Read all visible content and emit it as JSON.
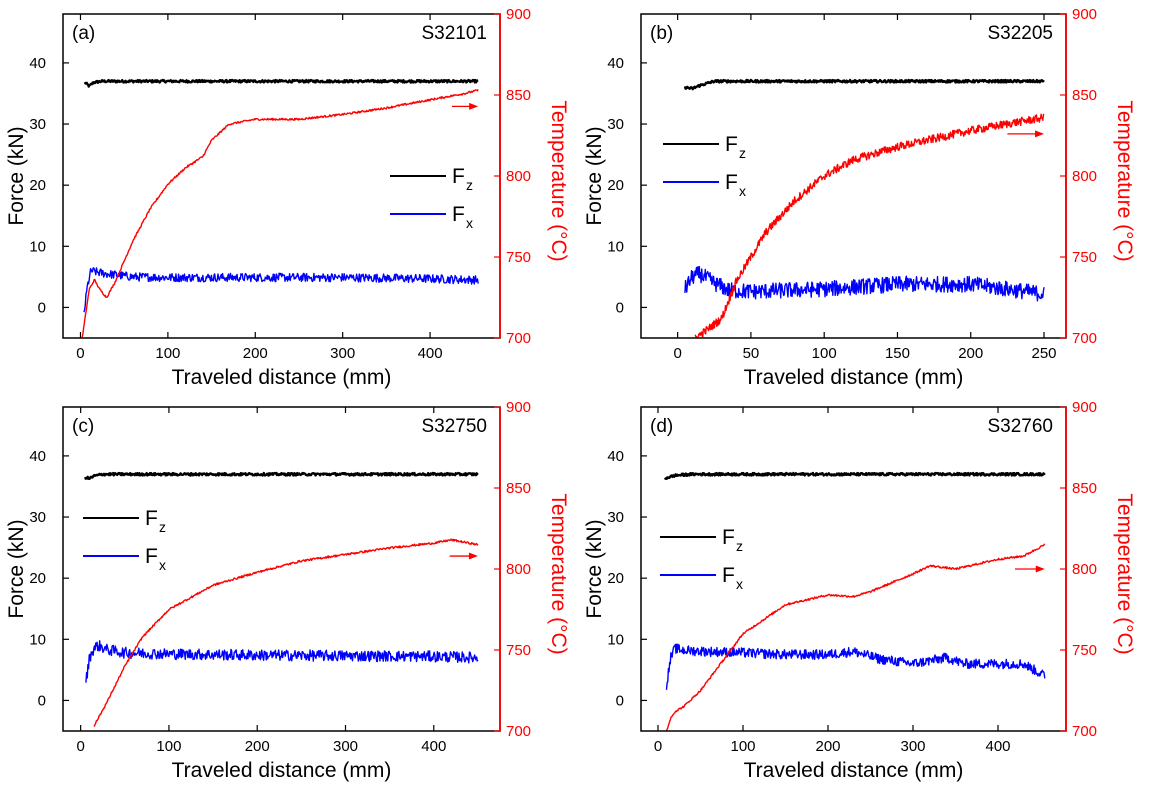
{
  "figure": {
    "left_axis_label": "Force (kN)",
    "right_axis_label": "Temperature (°C)",
    "x_axis_label": "Traveled distance (mm)",
    "legend": [
      {
        "main": "F",
        "sub": "z",
        "color": "#000000"
      },
      {
        "main": "F",
        "sub": "x",
        "color": "#0000ff"
      }
    ],
    "colors": {
      "Fz": "#000000",
      "Fx": "#0000ff",
      "temperature": "#ff0000"
    }
  },
  "chart_data": [
    {
      "type": "line",
      "panel_label": "(a)",
      "sample": "S32101",
      "xlabel": "Traveled distance (mm)",
      "ylabel": "Force (kN)",
      "y2label": "Temperature (°C)",
      "xlim": [
        -20,
        480
      ],
      "xticks": [
        0,
        100,
        200,
        300,
        400
      ],
      "ylim": [
        -5,
        48
      ],
      "yticks": [
        0,
        10,
        20,
        30,
        40
      ],
      "y2lim": [
        700,
        900
      ],
      "y2ticks": [
        700,
        750,
        800,
        850,
        900
      ],
      "grid": false,
      "legend_position": "right",
      "series": [
        {
          "name": "Fz",
          "axis": "left",
          "noise": 0.2,
          "x": [
            5,
            10,
            15,
            25,
            50,
            100,
            200,
            300,
            400,
            455
          ],
          "y": [
            36.8,
            36.2,
            36.8,
            37.0,
            37.0,
            37.0,
            37.0,
            37.0,
            37.0,
            37.0
          ]
        },
        {
          "name": "Fx",
          "axis": "left",
          "noise": 0.7,
          "x": [
            4,
            8,
            12,
            18,
            30,
            60,
            100,
            200,
            300,
            400,
            455
          ],
          "y": [
            -1.0,
            3.5,
            6.0,
            5.8,
            5.5,
            5.0,
            4.9,
            4.9,
            4.9,
            4.7,
            4.5
          ],
          "x_start": 3
        },
        {
          "name": "Temperature",
          "axis": "right",
          "noise": 0.6,
          "x": [
            2,
            10,
            16,
            22,
            30,
            40,
            60,
            80,
            100,
            120,
            140,
            150,
            170,
            200,
            250,
            300,
            350,
            400,
            440,
            455
          ],
          "y": [
            700,
            730,
            736,
            730,
            725,
            735,
            760,
            780,
            795,
            805,
            812,
            822,
            832,
            835,
            835,
            838,
            842,
            847,
            851,
            853
          ]
        }
      ],
      "arrow_right": {
        "x": [
          425,
          455
        ],
        "temperature": 843
      }
    },
    {
      "type": "line",
      "panel_label": "(b)",
      "sample": "S32205",
      "xlabel": "Traveled distance (mm)",
      "ylabel": "Force (kN)",
      "y2label": "Temperature (°C)",
      "xlim": [
        -25,
        265
      ],
      "xticks": [
        0,
        50,
        100,
        150,
        200,
        250
      ],
      "ylim": [
        -5,
        48
      ],
      "yticks": [
        0,
        10,
        20,
        30,
        40
      ],
      "y2lim": [
        700,
        900
      ],
      "y2ticks": [
        700,
        750,
        800,
        850,
        900
      ],
      "grid": false,
      "legend_position": "left",
      "series": [
        {
          "name": "Fz",
          "axis": "left",
          "noise": 0.2,
          "x": [
            5,
            10,
            15,
            25,
            50,
            100,
            150,
            200,
            250
          ],
          "y": [
            36.0,
            35.8,
            36.3,
            37.0,
            37.0,
            37.0,
            37.0,
            37.0,
            37.0
          ]
        },
        {
          "name": "Fx",
          "axis": "left",
          "noise": 1.3,
          "x": [
            5,
            10,
            15,
            25,
            35,
            50,
            100,
            150,
            200,
            250
          ],
          "y": [
            3.0,
            5.0,
            5.5,
            4.0,
            2.8,
            2.6,
            3.0,
            3.8,
            3.8,
            2.2
          ]
        },
        {
          "name": "Temperature",
          "axis": "right",
          "noise": 2.5,
          "x": [
            12,
            20,
            30,
            40,
            50,
            60,
            80,
            100,
            120,
            150,
            180,
            200,
            230,
            250
          ],
          "y": [
            700,
            705,
            712,
            735,
            750,
            765,
            785,
            800,
            810,
            818,
            824,
            828,
            833,
            836
          ]
        }
      ],
      "arrow_right": {
        "x": [
          225,
          250
        ],
        "temperature": 826
      }
    },
    {
      "type": "line",
      "panel_label": "(c)",
      "sample": "S32750",
      "xlabel": "Traveled distance (mm)",
      "ylabel": "Force (kN)",
      "y2label": "Temperature (°C)",
      "xlim": [
        -20,
        475
      ],
      "xticks": [
        0,
        100,
        200,
        300,
        400
      ],
      "ylim": [
        -5,
        48
      ],
      "yticks": [
        0,
        10,
        20,
        30,
        40
      ],
      "y2lim": [
        700,
        900
      ],
      "y2ticks": [
        700,
        750,
        800,
        850,
        900
      ],
      "grid": false,
      "legend_position": "left",
      "series": [
        {
          "name": "Fz",
          "axis": "left",
          "noise": 0.2,
          "x": [
            5,
            10,
            15,
            25,
            50,
            100,
            200,
            300,
            400,
            450
          ],
          "y": [
            36.5,
            36.3,
            36.7,
            37.0,
            37.0,
            37.0,
            37.0,
            37.0,
            37.0,
            37.0
          ]
        },
        {
          "name": "Fx",
          "axis": "left",
          "noise": 0.9,
          "x": [
            6,
            10,
            15,
            20,
            30,
            50,
            100,
            200,
            300,
            400,
            450
          ],
          "y": [
            3.0,
            7.0,
            8.5,
            9.0,
            8.3,
            7.8,
            7.6,
            7.4,
            7.3,
            7.2,
            7.0
          ]
        },
        {
          "name": "Temperature",
          "axis": "right",
          "noise": 0.6,
          "x": [
            15,
            20,
            30,
            50,
            70,
            100,
            150,
            200,
            250,
            300,
            350,
            400,
            420,
            450
          ],
          "y": [
            703,
            708,
            718,
            740,
            758,
            775,
            790,
            798,
            805,
            809,
            813,
            816,
            818,
            815
          ]
        }
      ],
      "arrow_right": {
        "x": [
          418,
          450
        ],
        "temperature": 808
      }
    },
    {
      "type": "line",
      "panel_label": "(d)",
      "sample": "S32760",
      "xlabel": "Traveled distance (mm)",
      "ylabel": "Force (kN)",
      "y2label": "Temperature (°C)",
      "xlim": [
        -20,
        480
      ],
      "xticks": [
        0,
        100,
        200,
        300,
        400
      ],
      "ylim": [
        -5,
        48
      ],
      "yticks": [
        0,
        10,
        20,
        30,
        40
      ],
      "y2lim": [
        700,
        900
      ],
      "y2ticks": [
        700,
        750,
        800,
        850,
        900
      ],
      "grid": false,
      "legend_position": "left",
      "series": [
        {
          "name": "Fz",
          "axis": "left",
          "noise": 0.2,
          "x": [
            8,
            12,
            20,
            40,
            100,
            200,
            300,
            400,
            455
          ],
          "y": [
            36.3,
            36.5,
            36.8,
            37.0,
            37.0,
            37.0,
            37.0,
            37.0,
            37.0
          ]
        },
        {
          "name": "Fx",
          "axis": "left",
          "noise": 0.8,
          "x": [
            10,
            15,
            20,
            30,
            60,
            100,
            150,
            200,
            230,
            260,
            300,
            340,
            360,
            400,
            430,
            455
          ],
          "y": [
            2.5,
            7.0,
            8.5,
            8.2,
            8.0,
            7.8,
            7.5,
            7.5,
            8.0,
            6.8,
            6.0,
            7.0,
            6.0,
            6.0,
            6.0,
            4.0
          ]
        },
        {
          "name": "Temperature",
          "axis": "right",
          "noise": 0.6,
          "x": [
            10,
            15,
            20,
            30,
            50,
            100,
            150,
            200,
            230,
            250,
            300,
            320,
            350,
            400,
            430,
            455
          ],
          "y": [
            700,
            708,
            712,
            715,
            725,
            760,
            778,
            784,
            783,
            786,
            797,
            802,
            800,
            806,
            808,
            815
          ]
        }
      ],
      "arrow_right": {
        "x": [
          420,
          455
        ],
        "temperature": 800
      }
    }
  ]
}
